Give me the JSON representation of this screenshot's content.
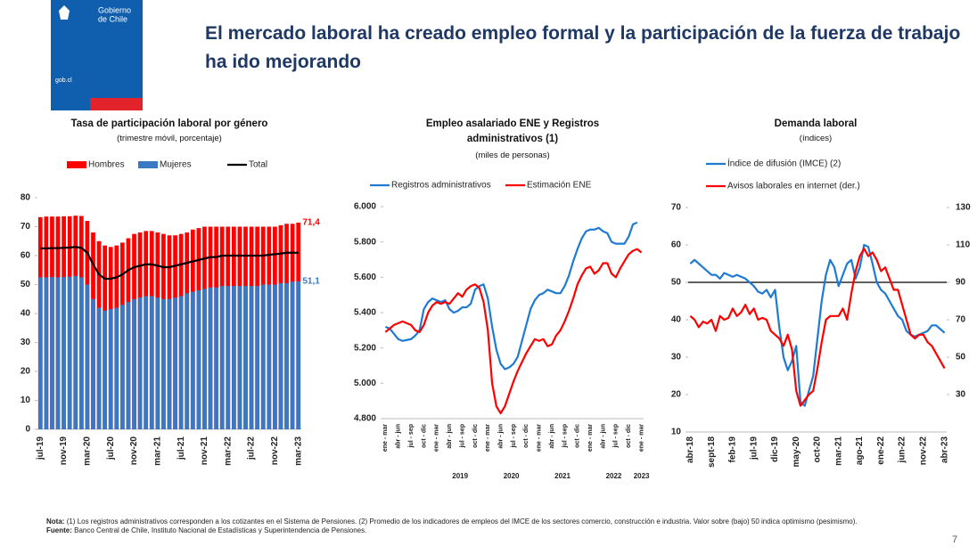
{
  "header": {
    "logo_lines": [
      "Gobierno",
      "de Chile"
    ],
    "logo_url": "gob.cl",
    "title": "El mercado laboral ha creado empleo formal y la participación de la fuerza de trabajo ha ido mejorando"
  },
  "chart_data": [
    {
      "type": "bar",
      "title": "Tasa de participación laboral por género",
      "subtitle": "(trimestre móvil, porcentaje)",
      "bar_mode": "overlay",
      "categories": [
        "jul-19",
        null,
        null,
        null,
        "nov-19",
        null,
        null,
        null,
        "mar-20",
        null,
        null,
        null,
        "jul-20",
        null,
        null,
        null,
        "nov-20",
        null,
        null,
        null,
        "mar-21",
        null,
        null,
        null,
        "jul-21",
        null,
        null,
        null,
        "nov-21",
        null,
        null,
        null,
        "mar-22",
        null,
        null,
        null,
        "jul-22",
        null,
        null,
        null,
        "nov-22",
        null,
        null,
        null,
        "mar-23"
      ],
      "series": [
        {
          "name": "Hombres",
          "color": "#ff0000",
          "values": [
            73.3,
            73.5,
            73.5,
            73.5,
            73.6,
            73.6,
            73.8,
            73.7,
            72,
            68,
            65,
            63.5,
            63,
            63.5,
            64.5,
            66,
            67.5,
            68,
            68.5,
            68.5,
            68,
            67.5,
            67,
            67,
            67.5,
            68,
            69,
            69.5,
            70,
            70,
            70,
            70,
            70,
            70,
            70,
            70,
            70,
            70,
            70,
            70,
            70,
            70.5,
            71,
            71,
            71.4
          ],
          "value_labels": [
            null,
            null,
            null,
            null,
            null,
            null,
            null,
            null,
            null,
            null,
            null,
            null,
            null,
            null,
            null,
            null,
            null,
            null,
            null,
            null,
            null,
            null,
            null,
            null,
            null,
            null,
            null,
            null,
            null,
            null,
            null,
            null,
            null,
            null,
            null,
            null,
            null,
            null,
            null,
            null,
            null,
            null,
            null,
            null,
            "71,4"
          ]
        },
        {
          "name": "Mujeres",
          "color": "#3a78c3",
          "values": [
            52.5,
            52.5,
            52.6,
            52.5,
            52.6,
            52.7,
            53,
            52.5,
            50,
            45,
            42,
            41,
            41.5,
            42,
            43,
            44,
            45,
            45.5,
            46,
            46,
            45.5,
            45,
            45,
            45.5,
            46,
            47,
            47.5,
            48,
            48.5,
            49,
            49,
            49.5,
            49.5,
            49.5,
            49.5,
            49.5,
            49.5,
            49.5,
            50,
            50,
            50,
            50.5,
            50.5,
            51,
            51.1
          ],
          "value_labels": [
            null,
            null,
            null,
            null,
            null,
            null,
            null,
            null,
            null,
            null,
            null,
            null,
            null,
            null,
            null,
            null,
            null,
            null,
            null,
            null,
            null,
            null,
            null,
            null,
            null,
            null,
            null,
            null,
            null,
            null,
            null,
            null,
            null,
            null,
            null,
            null,
            null,
            null,
            null,
            null,
            null,
            null,
            null,
            null,
            "51,1"
          ]
        },
        {
          "name": "Total",
          "color": "#000000",
          "type": "line",
          "values": [
            62.5,
            62.5,
            62.6,
            62.6,
            62.7,
            62.8,
            63,
            62.7,
            61,
            57,
            53.5,
            52,
            52,
            52.5,
            53.5,
            55,
            56,
            56.5,
            57,
            57,
            56.5,
            56,
            56,
            56.5,
            57,
            57.5,
            58,
            58.5,
            59,
            59.5,
            59.5,
            60,
            60,
            60,
            60,
            60,
            60,
            60,
            60,
            60.3,
            60.5,
            60.7,
            61,
            61,
            61
          ]
        }
      ],
      "ylim": [
        0,
        80
      ],
      "yticks": [
        0,
        10,
        20,
        30,
        40,
        50,
        60,
        70,
        80
      ],
      "grid": false
    },
    {
      "type": "line",
      "title": "Empleo asalariado ENE y Registros administrativos (1)",
      "subtitle": "(miles de personas)",
      "categories": [
        "ene - mar",
        null,
        null,
        "abr - jun",
        null,
        null,
        "jul - sep",
        null,
        null,
        "oct - dic",
        null,
        null,
        "ene - mar",
        null,
        null,
        "abr - jun",
        null,
        null,
        "jul - sep",
        null,
        null,
        "oct - dic",
        null,
        null,
        "ene - mar",
        null,
        null,
        "abr - jun",
        null,
        null,
        "jul - sep",
        null,
        null,
        "oct - dic",
        null,
        null,
        "ene - mar",
        null,
        null,
        "abr - jun",
        null,
        null,
        "jul - sep",
        null,
        null,
        "oct - dic",
        null,
        null,
        "ene - mar",
        null,
        null,
        "abr - jun",
        null,
        null,
        "jul - sep",
        null,
        null,
        "oct - dic",
        null,
        null,
        "ene - mar"
      ],
      "x_groups": [
        null,
        "2019",
        "2020",
        "2021",
        "2022",
        "2023"
      ],
      "series": [
        {
          "name": "Registros administrativos",
          "color": "#1f7ad1",
          "values": [
            5320,
            5310,
            5280,
            5250,
            5240,
            5245,
            5250,
            5270,
            5300,
            5420,
            5460,
            5480,
            5470,
            5460,
            5470,
            5420,
            5400,
            5410,
            5430,
            5430,
            5450,
            5530,
            5550,
            5560,
            5480,
            5320,
            5190,
            5110,
            5080,
            5090,
            5110,
            5150,
            5240,
            5330,
            5420,
            5470,
            5500,
            5510,
            5530,
            5520,
            5510,
            5510,
            5550,
            5610,
            5690,
            5760,
            5820,
            5860,
            5870,
            5870,
            5880,
            5860,
            5850,
            5800,
            5790,
            5790,
            5790,
            5830,
            5900,
            5910,
            null
          ]
        },
        {
          "name": "Estimación ENE",
          "color": "#ff0000",
          "values": [
            5290,
            5310,
            5330,
            5340,
            5350,
            5340,
            5330,
            5300,
            5290,
            5330,
            5400,
            5440,
            5460,
            5450,
            5460,
            5450,
            5480,
            5510,
            5490,
            5530,
            5550,
            5560,
            5540,
            5460,
            5300,
            5000,
            4870,
            4830,
            4870,
            4940,
            5010,
            5070,
            5120,
            5170,
            5210,
            5250,
            5240,
            5250,
            5210,
            5220,
            5270,
            5300,
            5350,
            5410,
            5480,
            5560,
            5610,
            5650,
            5660,
            5620,
            5640,
            5680,
            5680,
            5620,
            5600,
            5650,
            5690,
            5730,
            5750,
            5760,
            5740
          ]
        }
      ],
      "ylim": [
        4800,
        6000
      ],
      "yticks": [
        {
          "value": 4800,
          "label": "4.800"
        },
        {
          "value": 5000,
          "label": "5.000"
        },
        {
          "value": 5200,
          "label": "5.200"
        },
        {
          "value": 5400,
          "label": "5.400"
        },
        {
          "value": 5600,
          "label": "5.600"
        },
        {
          "value": 5800,
          "label": "5.800"
        },
        {
          "value": 6000,
          "label": "6.000"
        }
      ],
      "grid": false
    },
    {
      "type": "line",
      "title": "Demanda laboral",
      "subtitle": "(índices)",
      "categories": [
        "abr-18",
        null,
        null,
        null,
        null,
        "sept-18",
        null,
        null,
        null,
        null,
        "feb-19",
        null,
        null,
        null,
        null,
        "jul-19",
        null,
        null,
        null,
        null,
        "dic-19",
        null,
        null,
        null,
        null,
        "may-20",
        null,
        null,
        null,
        null,
        "oct-20",
        null,
        null,
        null,
        null,
        "mar-21",
        null,
        null,
        null,
        null,
        "ago-21",
        null,
        null,
        null,
        null,
        "ene-22",
        null,
        null,
        null,
        null,
        "jun-22",
        null,
        null,
        null,
        null,
        "nov-22",
        null,
        null,
        null,
        null,
        "abr-23"
      ],
      "series": [
        {
          "name": "Índice de difusión (IMCE) (2)",
          "color": "#1f7ad1",
          "values": [
            55,
            56,
            55,
            54,
            53,
            52,
            52,
            51,
            52.5,
            52,
            51.5,
            52,
            51.5,
            51,
            50,
            49,
            47.5,
            47,
            48,
            46,
            48,
            38,
            30,
            26.5,
            29,
            33,
            18,
            17,
            21,
            25,
            35,
            45,
            52,
            56,
            54,
            49,
            52,
            55,
            56,
            51,
            54,
            60,
            59.5,
            55,
            50,
            48,
            47,
            45,
            43,
            41,
            40,
            37,
            36,
            35.5,
            36,
            36.5,
            37,
            38.5,
            38.5,
            37.5,
            36.5
          ]
        },
        {
          "name": "Avisos laborales en internet (der.)",
          "color": "#ff0000",
          "axis": "y2",
          "values": [
            72,
            70,
            66,
            69,
            68,
            70,
            64,
            72,
            70,
            71,
            76,
            72,
            74,
            78,
            73,
            76,
            70,
            71,
            70,
            64,
            62,
            60,
            56,
            62,
            54,
            32,
            24,
            27,
            30,
            32,
            44,
            58,
            70,
            72,
            72,
            72,
            76,
            70,
            84,
            96,
            104,
            108,
            104,
            106,
            102,
            96,
            98,
            92,
            86,
            86,
            78,
            70,
            62,
            60,
            62,
            62,
            58,
            56,
            52,
            48,
            44
          ]
        }
      ],
      "ylim": [
        10,
        70
      ],
      "yticks": [
        10,
        20,
        30,
        40,
        50,
        60,
        70
      ],
      "y2lim": [
        10,
        130
      ],
      "y2ticks": [
        30,
        50,
        70,
        90,
        110,
        130
      ],
      "hline": 50,
      "grid": false
    }
  ],
  "footer": {
    "note_label": "Nota:",
    "note": "(1) Los registros administrativos corresponden a los cotizantes en el Sistema de Pensiones. (2) Promedio de los indicadores de empleos del IMCE de los sectores comercio, construcción e industria. Valor sobre (bajo) 50 indica optimismo (pesimismo).",
    "source_label": "Fuente:",
    "source": "Banco Central de Chile, Instituto Nacional de Estadísticas y Superintendencia de Pensiones.",
    "page_number": "7"
  }
}
